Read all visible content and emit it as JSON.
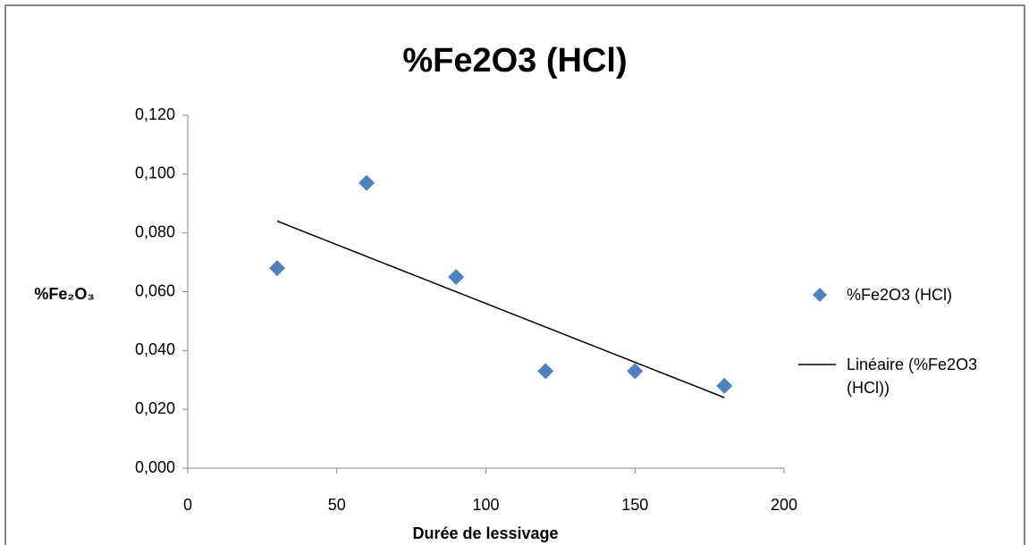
{
  "chart_data": {
    "type": "scatter",
    "title": "%Fe2O3 (HCl)",
    "x_label": "Durée de lessivage",
    "y_label": "%Fe₂O₃",
    "series": [
      {
        "name": "%Fe2O3 (HCl)",
        "color": "#4f81bd",
        "marker": "diamond",
        "x": [
          30,
          60,
          90,
          120,
          150,
          180
        ],
        "values": [
          0.068,
          0.097,
          0.065,
          0.033,
          0.033,
          0.028
        ]
      },
      {
        "name": "Linéaire (%Fe2O3 (HCl))",
        "color": "#000000",
        "marker": "line",
        "x": [
          30,
          180
        ],
        "values": [
          0.084,
          0.024
        ]
      }
    ],
    "xlim": [
      0,
      200
    ],
    "xticks": [
      0,
      50,
      100,
      150,
      200
    ],
    "ylim": [
      0,
      0.12
    ],
    "yticks": [
      {
        "value": 0,
        "label": "0,000"
      },
      {
        "value": 0.02,
        "label": "0,020"
      },
      {
        "value": 0.04,
        "label": "0,040"
      },
      {
        "value": 0.06,
        "label": "0,060"
      },
      {
        "value": 0.08,
        "label": "0,080"
      },
      {
        "value": 0.1,
        "label": "0,100"
      },
      {
        "value": 0.12,
        "label": "0,120"
      }
    ],
    "grid": false,
    "legend": "right"
  }
}
